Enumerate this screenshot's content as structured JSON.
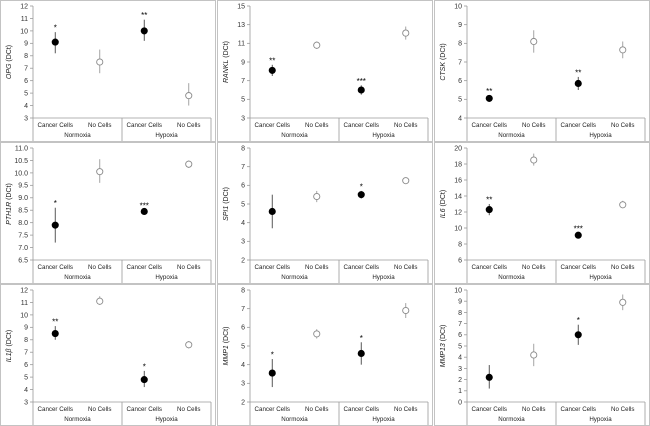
{
  "chart_data": [
    {
      "type": "scatter",
      "title": "OPG",
      "ylabel": "OPG (DCt)",
      "ylim": [
        3,
        12
      ],
      "yticks": [
        3,
        4,
        5,
        6,
        7,
        8,
        9,
        10,
        11,
        12
      ],
      "categories": [
        "Cancer Cells",
        "No Cells",
        "Cancer Cells",
        "No Cells"
      ],
      "groups": [
        "Normoxia",
        "Hypoxia"
      ],
      "points": [
        {
          "group": "Normoxia",
          "category": "Cancer Cells",
          "value": 9.1,
          "err_low": 8.2,
          "err_high": 9.9,
          "filled": true,
          "sig": "*"
        },
        {
          "group": "Normoxia",
          "category": "No Cells",
          "value": 7.5,
          "err_low": 6.6,
          "err_high": 8.5,
          "filled": false,
          "sig": ""
        },
        {
          "group": "Hypoxia",
          "category": "Cancer Cells",
          "value": 10.0,
          "err_low": 9.2,
          "err_high": 10.9,
          "filled": true,
          "sig": "**"
        },
        {
          "group": "Hypoxia",
          "category": "No Cells",
          "value": 4.8,
          "err_low": 4.0,
          "err_high": 5.8,
          "filled": false,
          "sig": ""
        }
      ]
    },
    {
      "type": "scatter",
      "title": "RANKL",
      "ylabel": "RANKL (DCt)",
      "ylim": [
        3,
        15
      ],
      "yticks": [
        3,
        5,
        7,
        9,
        11,
        13,
        15
      ],
      "categories": [
        "Cancer Cells",
        "No Cells",
        "Cancer Cells",
        "No Cells"
      ],
      "groups": [
        "Normoxia",
        "Hypoxia"
      ],
      "points": [
        {
          "group": "Normoxia",
          "category": "Cancer Cells",
          "value": 8.1,
          "err_low": 7.5,
          "err_high": 8.7,
          "filled": true,
          "sig": "**"
        },
        {
          "group": "Normoxia",
          "category": "No Cells",
          "value": 10.8,
          "err_low": 10.4,
          "err_high": 11.2,
          "filled": false,
          "sig": ""
        },
        {
          "group": "Hypoxia",
          "category": "Cancer Cells",
          "value": 6.0,
          "err_low": 5.5,
          "err_high": 6.5,
          "filled": true,
          "sig": "***"
        },
        {
          "group": "Hypoxia",
          "category": "No Cells",
          "value": 12.1,
          "err_low": 11.4,
          "err_high": 12.8,
          "filled": false,
          "sig": ""
        }
      ]
    },
    {
      "type": "scatter",
      "title": "CTSK",
      "ylabel": "CTSK (DCt)",
      "ylim": [
        4,
        10
      ],
      "yticks": [
        4,
        5,
        6,
        7,
        8,
        9,
        10
      ],
      "categories": [
        "Cancer Cells",
        "No Cells",
        "Cancer Cells",
        "No Cells"
      ],
      "groups": [
        "Normoxia",
        "Hypoxia"
      ],
      "points": [
        {
          "group": "Normoxia",
          "category": "Cancer Cells",
          "value": 5.05,
          "err_low": 4.9,
          "err_high": 5.2,
          "filled": true,
          "sig": "**"
        },
        {
          "group": "Normoxia",
          "category": "No Cells",
          "value": 8.1,
          "err_low": 7.5,
          "err_high": 8.7,
          "filled": false,
          "sig": ""
        },
        {
          "group": "Hypoxia",
          "category": "Cancer Cells",
          "value": 5.85,
          "err_low": 5.5,
          "err_high": 6.2,
          "filled": true,
          "sig": "**"
        },
        {
          "group": "Hypoxia",
          "category": "No Cells",
          "value": 7.65,
          "err_low": 7.2,
          "err_high": 8.1,
          "filled": false,
          "sig": ""
        }
      ]
    },
    {
      "type": "scatter",
      "title": "PTH1R",
      "ylabel": "PTH1R (DCt)",
      "ylim": [
        6.5,
        11.0
      ],
      "yticks": [
        6.5,
        7.0,
        7.5,
        8.0,
        8.5,
        9.0,
        9.5,
        10.0,
        10.5,
        11.0
      ],
      "categories": [
        "Cancer Cells",
        "No Cells",
        "Cancer Cells",
        "No Cells"
      ],
      "groups": [
        "Normoxia",
        "Hypoxia"
      ],
      "points": [
        {
          "group": "Normoxia",
          "category": "Cancer Cells",
          "value": 7.9,
          "err_low": 7.2,
          "err_high": 8.6,
          "filled": true,
          "sig": "*"
        },
        {
          "group": "Normoxia",
          "category": "No Cells",
          "value": 10.05,
          "err_low": 9.6,
          "err_high": 10.55,
          "filled": false,
          "sig": ""
        },
        {
          "group": "Hypoxia",
          "category": "Cancer Cells",
          "value": 8.45,
          "err_low": 8.4,
          "err_high": 8.5,
          "filled": true,
          "sig": "***"
        },
        {
          "group": "Hypoxia",
          "category": "No Cells",
          "value": 10.35,
          "err_low": 10.2,
          "err_high": 10.5,
          "filled": false,
          "sig": ""
        }
      ]
    },
    {
      "type": "scatter",
      "title": "SPI1",
      "ylabel": "SPI1 (DCt)",
      "ylim": [
        2,
        8
      ],
      "yticks": [
        2,
        3,
        4,
        5,
        6,
        7,
        8
      ],
      "categories": [
        "Cancer Cells",
        "No Cells",
        "Cancer Cells",
        "No Cells"
      ],
      "groups": [
        "Normoxia",
        "Hypoxia"
      ],
      "points": [
        {
          "group": "Normoxia",
          "category": "Cancer Cells",
          "value": 4.6,
          "err_low": 3.7,
          "err_high": 5.5,
          "filled": true,
          "sig": ""
        },
        {
          "group": "Normoxia",
          "category": "No Cells",
          "value": 5.4,
          "err_low": 5.1,
          "err_high": 5.7,
          "filled": false,
          "sig": ""
        },
        {
          "group": "Hypoxia",
          "category": "Cancer Cells",
          "value": 5.5,
          "err_low": 5.3,
          "err_high": 5.7,
          "filled": true,
          "sig": "*"
        },
        {
          "group": "Hypoxia",
          "category": "No Cells",
          "value": 6.25,
          "err_low": 6.2,
          "err_high": 6.3,
          "filled": false,
          "sig": ""
        }
      ]
    },
    {
      "type": "scatter",
      "title": "IL6",
      "ylabel": "IL6 (DCt)",
      "ylim": [
        6,
        20
      ],
      "yticks": [
        6,
        8,
        10,
        12,
        14,
        16,
        18,
        20
      ],
      "categories": [
        "Cancer Cells",
        "No Cells",
        "Cancer Cells",
        "No Cells"
      ],
      "groups": [
        "Normoxia",
        "Hypoxia"
      ],
      "points": [
        {
          "group": "Normoxia",
          "category": "Cancer Cells",
          "value": 12.3,
          "err_low": 11.6,
          "err_high": 13.0,
          "filled": true,
          "sig": "**"
        },
        {
          "group": "Normoxia",
          "category": "No Cells",
          "value": 18.5,
          "err_low": 17.8,
          "err_high": 19.3,
          "filled": false,
          "sig": ""
        },
        {
          "group": "Hypoxia",
          "category": "Cancer Cells",
          "value": 9.1,
          "err_low": 8.8,
          "err_high": 9.4,
          "filled": true,
          "sig": "***"
        },
        {
          "group": "Hypoxia",
          "category": "No Cells",
          "value": 12.9,
          "err_low": 12.5,
          "err_high": 13.4,
          "filled": false,
          "sig": ""
        }
      ]
    },
    {
      "type": "scatter",
      "title": "IL1B",
      "ylabel": "IL1β (DCt)",
      "ylim": [
        3,
        12
      ],
      "yticks": [
        3,
        4,
        5,
        6,
        7,
        8,
        9,
        10,
        11,
        12
      ],
      "categories": [
        "Cancer Cells",
        "No Cells",
        "Cancer Cells",
        "No Cells"
      ],
      "groups": [
        "Normoxia",
        "Hypoxia"
      ],
      "points": [
        {
          "group": "Normoxia",
          "category": "Cancer Cells",
          "value": 8.5,
          "err_low": 8.0,
          "err_high": 9.1,
          "filled": true,
          "sig": "**"
        },
        {
          "group": "Normoxia",
          "category": "No Cells",
          "value": 11.1,
          "err_low": 10.8,
          "err_high": 11.5,
          "filled": false,
          "sig": ""
        },
        {
          "group": "Hypoxia",
          "category": "Cancer Cells",
          "value": 4.8,
          "err_low": 4.2,
          "err_high": 5.5,
          "filled": true,
          "sig": "*"
        },
        {
          "group": "Hypoxia",
          "category": "No Cells",
          "value": 7.6,
          "err_low": 7.3,
          "err_high": 7.9,
          "filled": false,
          "sig": ""
        }
      ]
    },
    {
      "type": "scatter",
      "title": "MMP1",
      "ylabel": "MMP1 (DCt)",
      "ylim": [
        2,
        8
      ],
      "yticks": [
        2,
        3,
        4,
        5,
        6,
        7,
        8
      ],
      "categories": [
        "Cancer Cells",
        "No Cells",
        "Cancer Cells",
        "No Cells"
      ],
      "groups": [
        "Normoxia",
        "Hypoxia"
      ],
      "points": [
        {
          "group": "Normoxia",
          "category": "Cancer Cells",
          "value": 3.55,
          "err_low": 2.8,
          "err_high": 4.3,
          "filled": true,
          "sig": "*"
        },
        {
          "group": "Normoxia",
          "category": "No Cells",
          "value": 5.65,
          "err_low": 5.4,
          "err_high": 5.9,
          "filled": false,
          "sig": ""
        },
        {
          "group": "Hypoxia",
          "category": "Cancer Cells",
          "value": 4.6,
          "err_low": 4.0,
          "err_high": 5.2,
          "filled": true,
          "sig": "*"
        },
        {
          "group": "Hypoxia",
          "category": "No Cells",
          "value": 6.9,
          "err_low": 6.5,
          "err_high": 7.3,
          "filled": false,
          "sig": ""
        }
      ]
    },
    {
      "type": "scatter",
      "title": "MMP13",
      "ylabel": "MMP13 (DCt)",
      "ylim": [
        0,
        10
      ],
      "yticks": [
        0,
        1,
        2,
        3,
        4,
        5,
        6,
        7,
        8,
        9,
        10
      ],
      "categories": [
        "Cancer Cells",
        "No Cells",
        "Cancer Cells",
        "No Cells"
      ],
      "groups": [
        "Normoxia",
        "Hypoxia"
      ],
      "points": [
        {
          "group": "Normoxia",
          "category": "Cancer Cells",
          "value": 2.2,
          "err_low": 1.2,
          "err_high": 3.3,
          "filled": true,
          "sig": ""
        },
        {
          "group": "Normoxia",
          "category": "No Cells",
          "value": 4.2,
          "err_low": 3.2,
          "err_high": 5.2,
          "filled": false,
          "sig": ""
        },
        {
          "group": "Hypoxia",
          "category": "Cancer Cells",
          "value": 6.0,
          "err_low": 5.1,
          "err_high": 6.9,
          "filled": true,
          "sig": "*"
        },
        {
          "group": "Hypoxia",
          "category": "No Cells",
          "value": 8.9,
          "err_low": 8.2,
          "err_high": 9.6,
          "filled": false,
          "sig": ""
        }
      ]
    }
  ]
}
